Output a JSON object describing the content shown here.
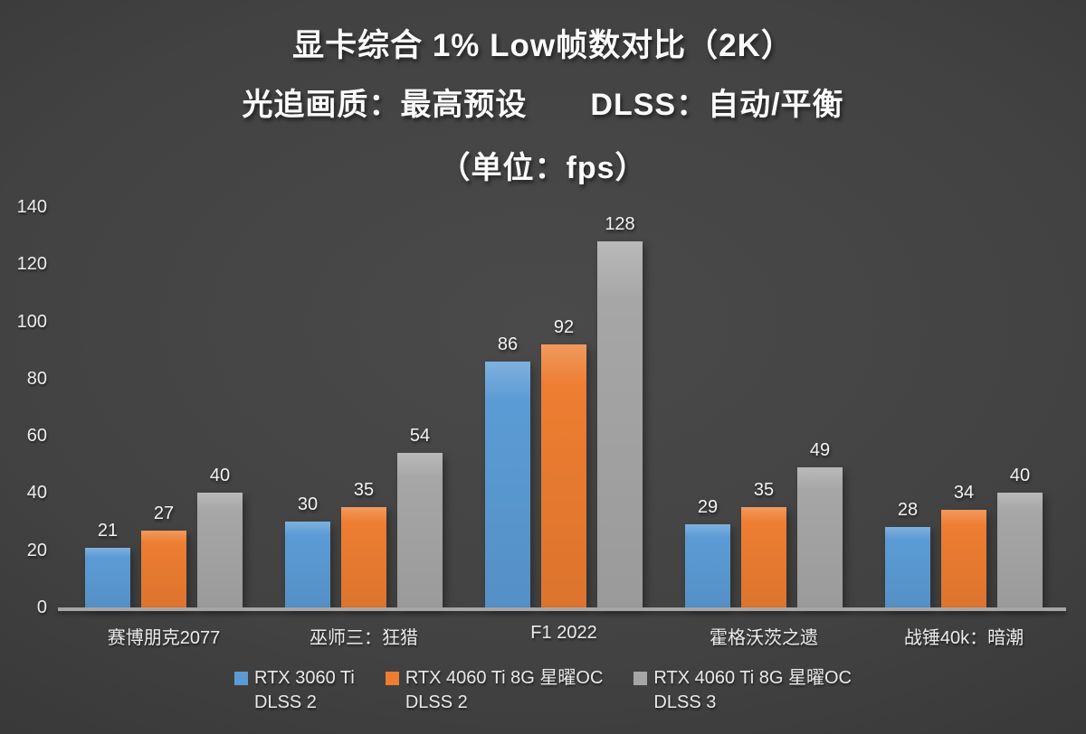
{
  "title": {
    "line1": "显卡综合 1% Low帧数对比（2K）",
    "line2": "光追画质：最高预设　　DLSS：自动/平衡",
    "line3": "（单位：fps）"
  },
  "chart_data": {
    "type": "bar",
    "title": "显卡综合 1% Low帧数对比（2K）",
    "subtitle": "光追画质：最高预设 DLSS：自动/平衡",
    "unit": "fps",
    "categories": [
      "赛博朋克2077",
      "巫师三：狂猎",
      "F1 2022",
      "霍格沃茨之遗",
      "战锤40k：暗潮"
    ],
    "series": [
      {
        "name": "RTX 3060 Ti DLSS 2",
        "legend_line1": "RTX 3060 Ti",
        "legend_line2": "DLSS 2",
        "color": "#5B9BD5",
        "values": [
          21,
          30,
          86,
          29,
          28
        ]
      },
      {
        "name": "RTX 4060 Ti 8G 星曜OC DLSS 2",
        "legend_line1": "RTX 4060 Ti 8G 星曜OC",
        "legend_line2": "DLSS 2",
        "color": "#ED7D31",
        "values": [
          27,
          35,
          92,
          35,
          34
        ]
      },
      {
        "name": "RTX 4060 Ti 8G 星曜OC DLSS 3",
        "legend_line1": "RTX 4060 Ti 8G 星曜OC",
        "legend_line2": "DLSS 3",
        "color": "#A6A6A6",
        "values": [
          40,
          54,
          128,
          49,
          40
        ]
      }
    ],
    "ylim": [
      0,
      140
    ],
    "yticks": [
      0,
      20,
      40,
      60,
      80,
      100,
      120,
      140
    ],
    "grid": false,
    "legend_position": "bottom",
    "background_color": "#3d3d3d",
    "text_color": "#f2f2f2",
    "axis_line_color": "#A6A6A6"
  }
}
